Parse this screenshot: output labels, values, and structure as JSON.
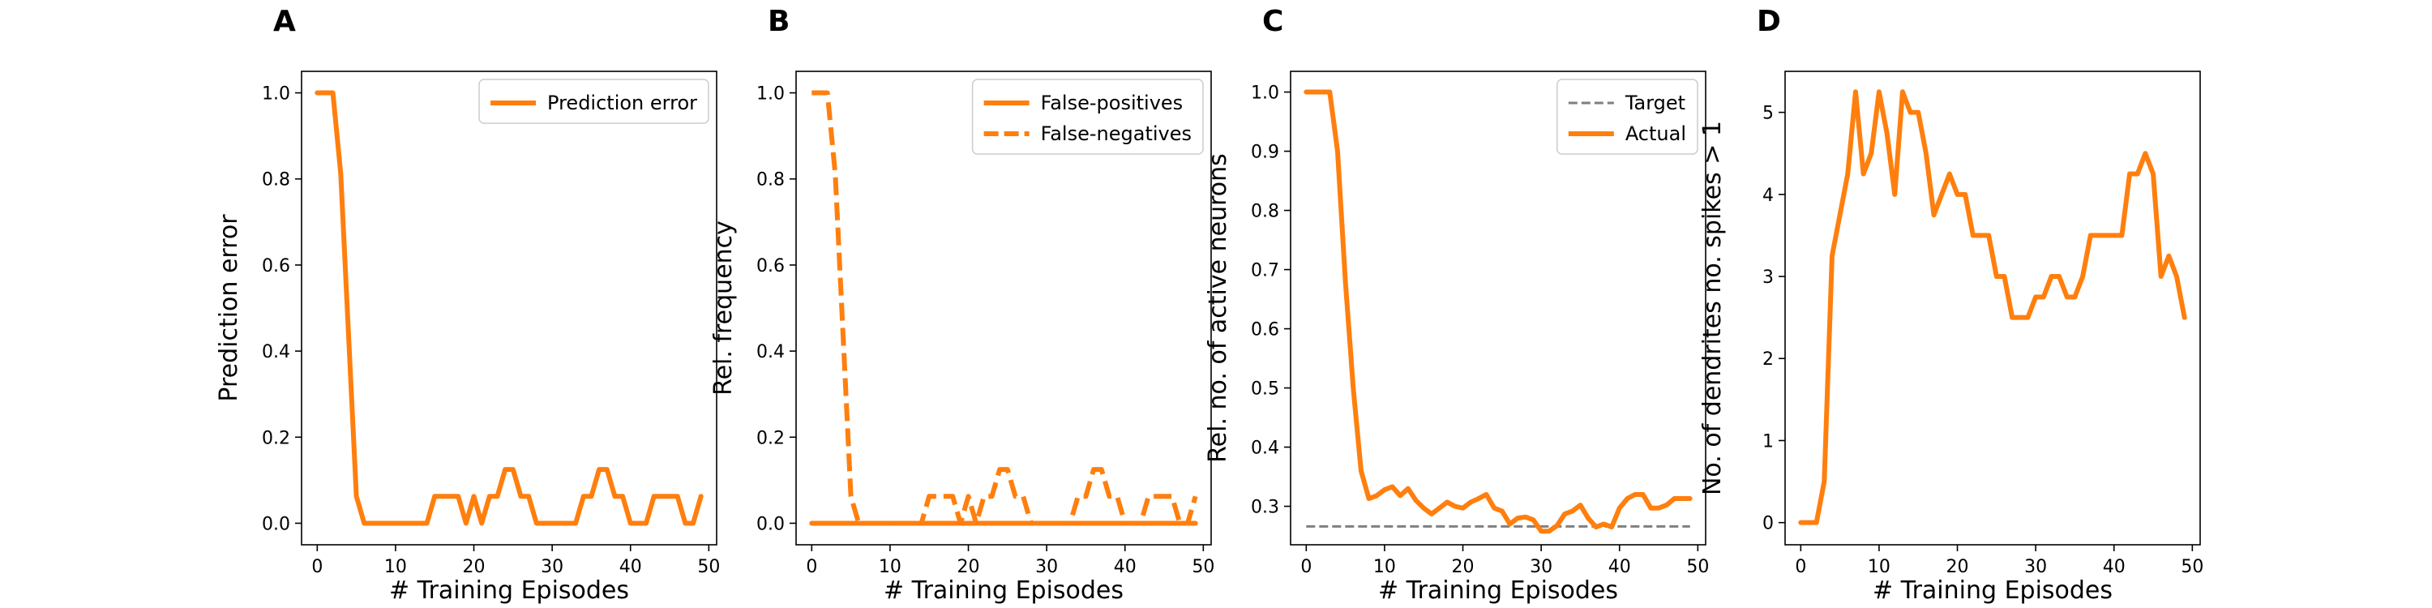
{
  "chart_data": [
    {
      "type": "line",
      "panel": "A",
      "xlabel": "# Training Episodes",
      "ylabel": "Prediction error",
      "xlim": [
        -2,
        51
      ],
      "ylim": [
        -0.05,
        1.05
      ],
      "xticks": [
        0,
        10,
        20,
        30,
        40,
        50
      ],
      "xtick_labels": [
        "0",
        "10",
        "20",
        "30",
        "40",
        "50"
      ],
      "yticks": [
        0.0,
        0.2,
        0.4,
        0.6,
        0.8,
        1.0
      ],
      "ytick_labels": [
        "0.0",
        "0.2",
        "0.4",
        "0.6",
        "0.8",
        "1.0"
      ],
      "grid": false,
      "legend_position": "top-right",
      "x": [
        0,
        1,
        2,
        3,
        4,
        5,
        6,
        7,
        8,
        9,
        10,
        11,
        12,
        13,
        14,
        15,
        16,
        17,
        18,
        19,
        20,
        21,
        22,
        23,
        24,
        25,
        26,
        27,
        28,
        29,
        30,
        31,
        32,
        33,
        34,
        35,
        36,
        37,
        38,
        39,
        40,
        41,
        42,
        43,
        44,
        45,
        46,
        47,
        48,
        49
      ],
      "series": [
        {
          "name": "Prediction error",
          "style": "solid",
          "color": "#ff7f0e",
          "values": [
            1.0,
            1.0,
            1.0,
            0.8125,
            0.4375,
            0.0625,
            0,
            0,
            0,
            0,
            0,
            0,
            0,
            0,
            0,
            0.0625,
            0.0625,
            0.0625,
            0.0625,
            0,
            0.0625,
            0,
            0.0625,
            0.0625,
            0.125,
            0.125,
            0.0625,
            0.0625,
            0,
            0,
            0,
            0,
            0,
            0,
            0.0625,
            0.0625,
            0.125,
            0.125,
            0.0625,
            0.0625,
            0,
            0,
            0,
            0.0625,
            0.0625,
            0.0625,
            0.0625,
            0,
            0,
            0.0625
          ]
        }
      ]
    },
    {
      "type": "line",
      "panel": "B",
      "xlabel": "# Training Episodes",
      "ylabel": "Rel. frequency",
      "xlim": [
        -2,
        51
      ],
      "ylim": [
        -0.05,
        1.05
      ],
      "xticks": [
        0,
        10,
        20,
        30,
        40,
        50
      ],
      "xtick_labels": [
        "0",
        "10",
        "20",
        "30",
        "40",
        "50"
      ],
      "yticks": [
        0.0,
        0.2,
        0.4,
        0.6,
        0.8,
        1.0
      ],
      "ytick_labels": [
        "0.0",
        "0.2",
        "0.4",
        "0.6",
        "0.8",
        "1.0"
      ],
      "grid": false,
      "legend_position": "top-right",
      "x": [
        0,
        1,
        2,
        3,
        4,
        5,
        6,
        7,
        8,
        9,
        10,
        11,
        12,
        13,
        14,
        15,
        16,
        17,
        18,
        19,
        20,
        21,
        22,
        23,
        24,
        25,
        26,
        27,
        28,
        29,
        30,
        31,
        32,
        33,
        34,
        35,
        36,
        37,
        38,
        39,
        40,
        41,
        42,
        43,
        44,
        45,
        46,
        47,
        48,
        49
      ],
      "series": [
        {
          "name": "False-positives",
          "style": "solid",
          "color": "#ff7f0e",
          "values": [
            0,
            0,
            0,
            0,
            0,
            0,
            0,
            0,
            0,
            0,
            0,
            0,
            0,
            0,
            0,
            0,
            0,
            0,
            0,
            0,
            0,
            0,
            0,
            0,
            0,
            0,
            0,
            0,
            0,
            0,
            0,
            0,
            0,
            0,
            0,
            0,
            0,
            0,
            0,
            0,
            0,
            0,
            0,
            0,
            0,
            0,
            0,
            0,
            0,
            0
          ]
        },
        {
          "name": "False-negatives",
          "style": "dashed",
          "color": "#ff7f0e",
          "values": [
            1.0,
            1.0,
            1.0,
            0.8125,
            0.4375,
            0.0625,
            0,
            0,
            0,
            0,
            0,
            0,
            0,
            0,
            0,
            0.0625,
            0.0625,
            0.0625,
            0.0625,
            0,
            0.0625,
            0,
            0.0625,
            0.0625,
            0.125,
            0.125,
            0.0625,
            0.0625,
            0,
            0,
            0,
            0,
            0,
            0,
            0.0625,
            0.0625,
            0.125,
            0.125,
            0.0625,
            0.0625,
            0,
            0,
            0,
            0.0625,
            0.0625,
            0.0625,
            0.0625,
            0,
            0,
            0.0625
          ]
        }
      ]
    },
    {
      "type": "line",
      "panel": "C",
      "xlabel": "# Training Episodes",
      "ylabel": "Rel. no. of active neurons",
      "xlim": [
        -2,
        51
      ],
      "ylim": [
        0.235,
        1.035
      ],
      "xticks": [
        0,
        10,
        20,
        30,
        40,
        50
      ],
      "xtick_labels": [
        "0",
        "10",
        "20",
        "30",
        "40",
        "50"
      ],
      "yticks": [
        0.3,
        0.4,
        0.5,
        0.6,
        0.7,
        0.8,
        0.9,
        1.0
      ],
      "ytick_labels": [
        "0.3",
        "0.4",
        "0.5",
        "0.6",
        "0.7",
        "0.8",
        "0.9",
        "1.0"
      ],
      "grid": false,
      "legend_position": "top-right",
      "x": [
        0,
        1,
        2,
        3,
        4,
        5,
        6,
        7,
        8,
        9,
        10,
        11,
        12,
        13,
        14,
        15,
        16,
        17,
        18,
        19,
        20,
        21,
        22,
        23,
        24,
        25,
        26,
        27,
        28,
        29,
        30,
        31,
        32,
        33,
        34,
        35,
        36,
        37,
        38,
        39,
        40,
        41,
        42,
        43,
        44,
        45,
        46,
        47,
        48,
        49
      ],
      "series": [
        {
          "name": "Target",
          "style": "dashed",
          "color": "#7f7f7f",
          "values": [
            0.266,
            0.266,
            0.266,
            0.266,
            0.266,
            0.266,
            0.266,
            0.266,
            0.266,
            0.266,
            0.266,
            0.266,
            0.266,
            0.266,
            0.266,
            0.266,
            0.266,
            0.266,
            0.266,
            0.266,
            0.266,
            0.266,
            0.266,
            0.266,
            0.266,
            0.266,
            0.266,
            0.266,
            0.266,
            0.266,
            0.266,
            0.266,
            0.266,
            0.266,
            0.266,
            0.266,
            0.266,
            0.266,
            0.266,
            0.266,
            0.266,
            0.266,
            0.266,
            0.266,
            0.266,
            0.266,
            0.266,
            0.266,
            0.266,
            0.266
          ]
        },
        {
          "name": "Actual",
          "style": "solid",
          "color": "#ff7f0e",
          "values": [
            1.0,
            1.0,
            1.0,
            1.0,
            0.9,
            0.68,
            0.5,
            0.36,
            0.313,
            0.318,
            0.328,
            0.333,
            0.318,
            0.33,
            0.31,
            0.297,
            0.287,
            0.297,
            0.307,
            0.3,
            0.297,
            0.307,
            0.313,
            0.32,
            0.297,
            0.292,
            0.27,
            0.28,
            0.282,
            0.277,
            0.258,
            0.258,
            0.267,
            0.287,
            0.292,
            0.302,
            0.28,
            0.265,
            0.27,
            0.265,
            0.297,
            0.313,
            0.32,
            0.32,
            0.297,
            0.297,
            0.302,
            0.313,
            0.313,
            0.313
          ]
        }
      ]
    },
    {
      "type": "line",
      "panel": "D",
      "xlabel": "# Training Episodes",
      "ylabel": "No. of dendrites no. spikes > 1",
      "xlim": [
        -2,
        51
      ],
      "ylim": [
        -0.27,
        5.5
      ],
      "xticks": [
        0,
        10,
        20,
        30,
        40,
        50
      ],
      "xtick_labels": [
        "0",
        "10",
        "20",
        "30",
        "40",
        "50"
      ],
      "yticks": [
        0,
        1,
        2,
        3,
        4,
        5
      ],
      "ytick_labels": [
        "0",
        "1",
        "2",
        "3",
        "4",
        "5"
      ],
      "grid": false,
      "legend_position": "none",
      "x": [
        0,
        1,
        2,
        3,
        4,
        5,
        6,
        7,
        8,
        9,
        10,
        11,
        12,
        13,
        14,
        15,
        16,
        17,
        18,
        19,
        20,
        21,
        22,
        23,
        24,
        25,
        26,
        27,
        28,
        29,
        30,
        31,
        32,
        33,
        34,
        35,
        36,
        37,
        38,
        39,
        40,
        41,
        42,
        43,
        44,
        45,
        46,
        47,
        48,
        49
      ],
      "series": [
        {
          "name": "",
          "style": "solid",
          "color": "#ff7f0e",
          "values": [
            0,
            0,
            0,
            0.5,
            3.25,
            3.75,
            4.25,
            5.25,
            4.25,
            4.5,
            5.25,
            4.75,
            4.0,
            5.25,
            5.0,
            5.0,
            4.5,
            3.75,
            4.0,
            4.25,
            4.0,
            4.0,
            3.5,
            3.5,
            3.5,
            3.0,
            3.0,
            2.5,
            2.5,
            2.5,
            2.75,
            2.75,
            3.0,
            3.0,
            2.75,
            2.75,
            3.0,
            3.5,
            3.5,
            3.5,
            3.5,
            3.5,
            4.25,
            4.25,
            4.5,
            4.25,
            3.0,
            3.25,
            3.0,
            2.5
          ]
        }
      ]
    }
  ]
}
